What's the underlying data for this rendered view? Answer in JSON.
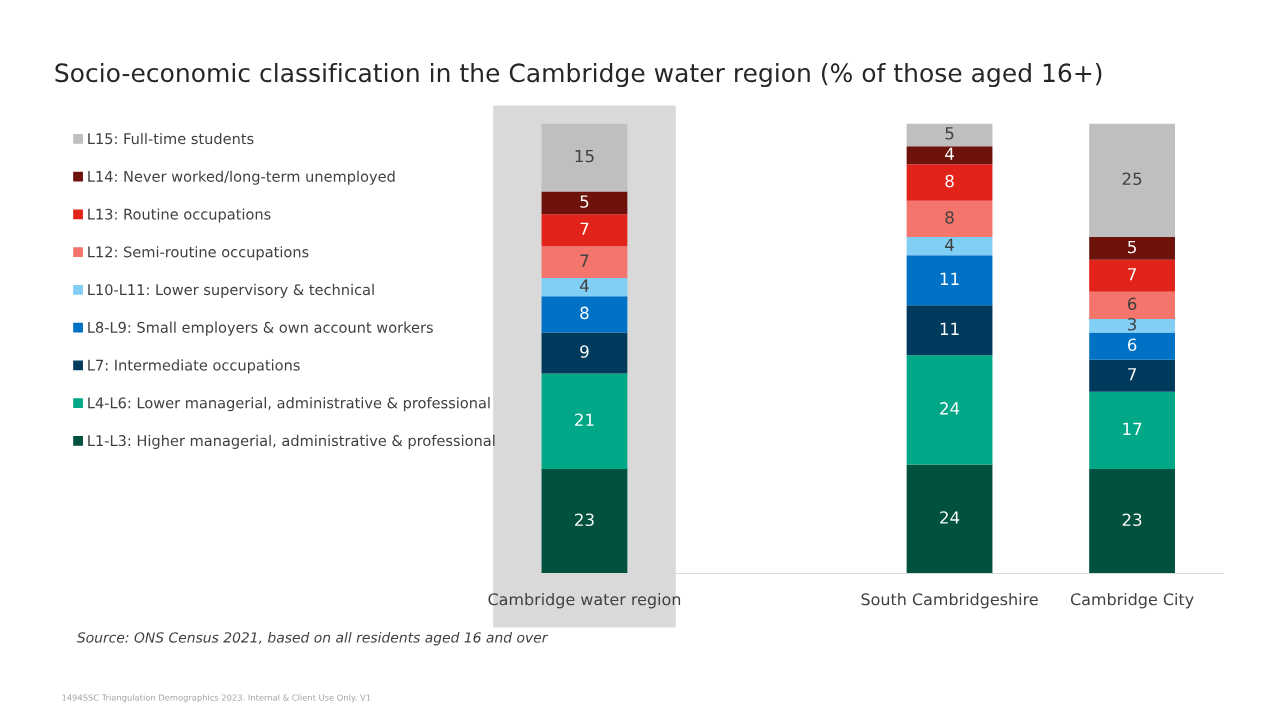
{
  "chart_data": {
    "type": "bar",
    "stacked": true,
    "title": "Socio-economic classification in the Cambridge water region (% of those aged 16+)",
    "categories": [
      "Cambridge water region",
      null,
      "South Cambridgeshire",
      "Cambridge City"
    ],
    "series": [
      {
        "name": "L1-L3: Higher managerial, administrative & professional",
        "color": "#00513e",
        "values": [
          23,
          null,
          24,
          23
        ]
      },
      {
        "name": "L4-L6: Lower managerial, administrative & professional",
        "color": "#00a887",
        "values": [
          21,
          null,
          24,
          17
        ]
      },
      {
        "name": "L7: Intermediate occupations",
        "color": "#003a5d",
        "values": [
          9,
          null,
          11,
          7
        ]
      },
      {
        "name": "L8-L9: Small employers & own account workers",
        "color": "#0072c6",
        "values": [
          8,
          null,
          11,
          6
        ]
      },
      {
        "name": "L10-L11: Lower supervisory & technical",
        "color": "#82cff5",
        "values": [
          4,
          null,
          4,
          3
        ]
      },
      {
        "name": "L12: Semi-routine occupations",
        "color": "#f4756c",
        "values": [
          7,
          null,
          8,
          6
        ]
      },
      {
        "name": "L13: Routine occupations",
        "color": "#e2231a",
        "values": [
          7,
          null,
          8,
          7
        ]
      },
      {
        "name": "L14: Never worked/long-term unemployed",
        "color": "#6e120c",
        "values": [
          5,
          null,
          4,
          5
        ]
      },
      {
        "name": "L15: Full-time students",
        "color": "#bfbfbf",
        "values": [
          15,
          null,
          5,
          25
        ]
      }
    ],
    "data_labels": true,
    "legend": "left",
    "grid": false,
    "tick_labels": "x",
    "bands": [
      {
        "axis": "x",
        "from": "Cambridge water region",
        "to": "Cambridge water region",
        "color": "#d9d9d9"
      }
    ],
    "annotations": [
      "Source: ONS Census 2021, based on all residents aged 16 and over",
      "1494SSC Triangulation Demographics 2023. Internal & Client Use Only. V1"
    ]
  }
}
